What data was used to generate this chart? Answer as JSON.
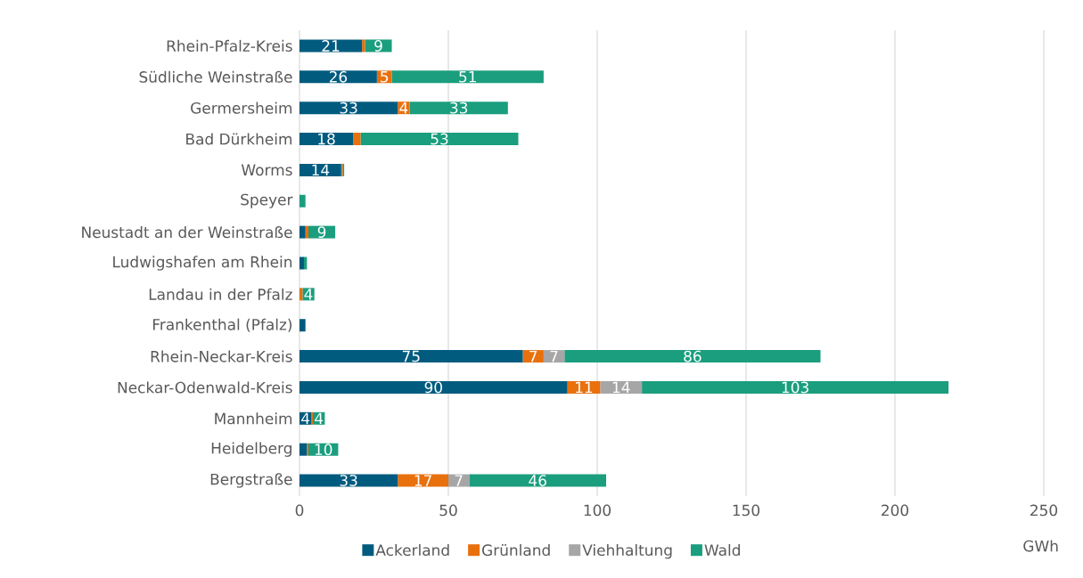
{
  "chart_data": {
    "type": "bar",
    "orientation": "horizontal",
    "stacked": true,
    "xlabel": "GWh",
    "categories": [
      "Rhein-Pfalz-Kreis",
      "Südliche Weinstraße",
      "Germersheim",
      "Bad Dürkheim",
      "Worms",
      "Speyer",
      "Neustadt an der Weinstraße",
      "Ludwigshafen am Rhein",
      "Landau in der Pfalz",
      "Frankenthal (Pfalz)",
      "Rhein-Neckar-Kreis",
      "Neckar-Odenwald-Kreis",
      "Mannheim",
      "Heidelberg",
      "Bergstraße"
    ],
    "series": [
      {
        "name": "Ackerland",
        "color": "#005b7f",
        "values": [
          21,
          26,
          33,
          18,
          14,
          null,
          2,
          1.5,
          null,
          2,
          75,
          90,
          4,
          2.5,
          33
        ],
        "value_labels": [
          "21",
          "26",
          "33",
          "18",
          "14",
          null,
          null,
          null,
          null,
          null,
          "75",
          "90",
          "4",
          null,
          "33"
        ]
      },
      {
        "name": "Grünland",
        "color": "#e8700d",
        "values": [
          1,
          5,
          4,
          2.5,
          0.5,
          null,
          1,
          null,
          1,
          null,
          7,
          11,
          0.5,
          0.5,
          17
        ],
        "value_labels": [
          null,
          "5",
          "4",
          null,
          null,
          null,
          null,
          null,
          null,
          null,
          "7",
          "11",
          null,
          null,
          "17"
        ]
      },
      {
        "name": "Viehhaltung",
        "color": "#a6a6a6",
        "values": [
          null,
          null,
          null,
          null,
          null,
          null,
          null,
          null,
          null,
          null,
          7,
          14,
          null,
          null,
          7
        ],
        "value_labels": [
          null,
          null,
          null,
          null,
          null,
          null,
          null,
          null,
          null,
          null,
          "7",
          "14",
          null,
          null,
          "7"
        ]
      },
      {
        "name": "Wald",
        "color": "#1a9e7e",
        "values": [
          9,
          51,
          33,
          53,
          0.5,
          2,
          9,
          1,
          4,
          null,
          86,
          103,
          4,
          10,
          46
        ],
        "value_labels": [
          "9",
          "51",
          "33",
          "53",
          null,
          null,
          "9",
          null,
          "4",
          null,
          "86",
          "103",
          "4",
          "10",
          "46"
        ]
      }
    ],
    "xlim": [
      0,
      250
    ],
    "xticks": [
      0,
      50,
      100,
      150,
      200,
      250
    ],
    "grid": "x",
    "legend": "bottom"
  }
}
